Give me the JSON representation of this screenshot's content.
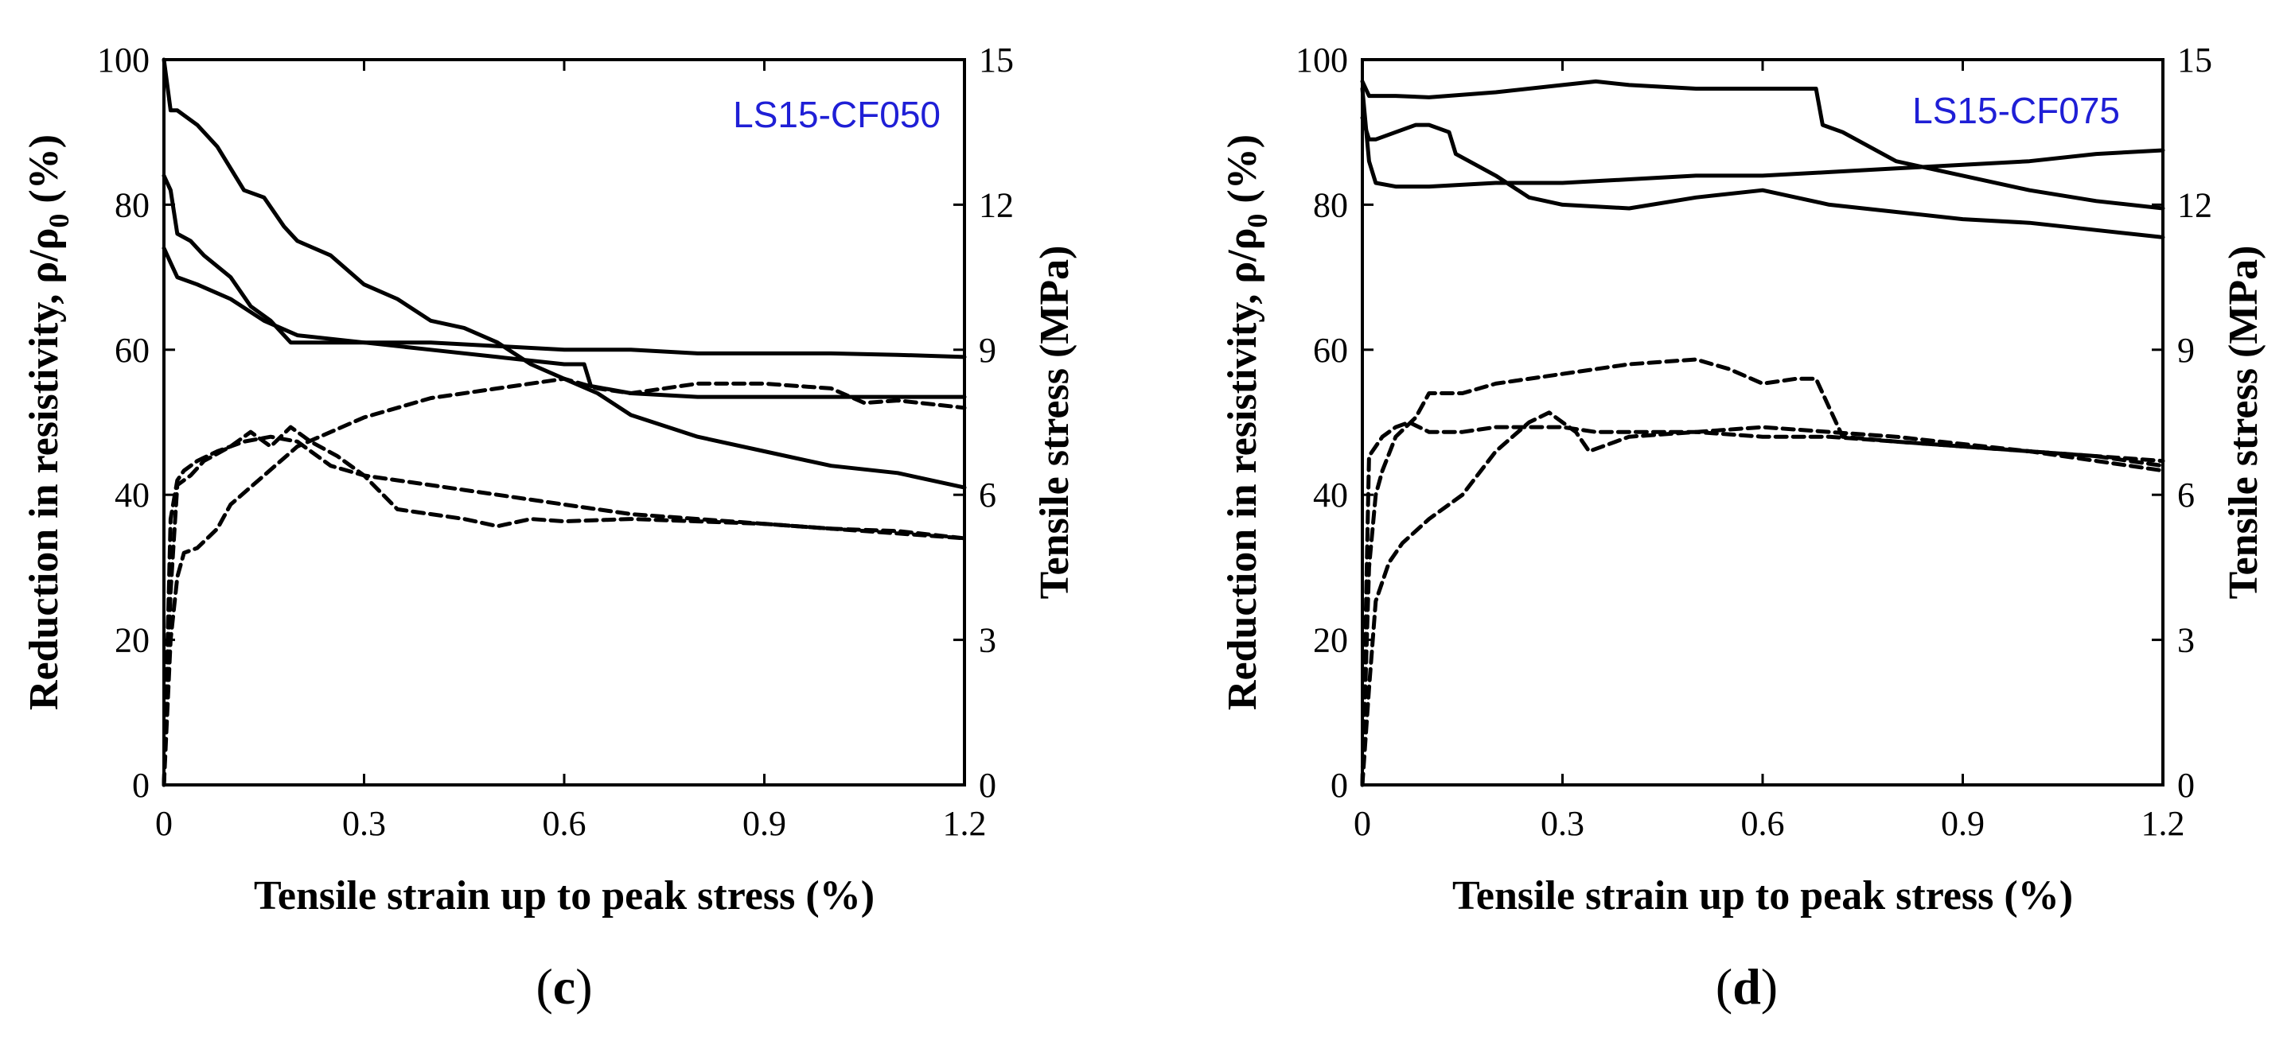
{
  "chart_data": [
    {
      "type": "line",
      "panel_label": "c",
      "specimen_label": "LS15-CF050",
      "colors": {
        "specimen_label": "#1f1fd6",
        "lines": "#000000"
      },
      "xlabel": "Tensile strain up to peak stress (%)",
      "ylabel_left": "Reduction in resistivity, ρ/ρ0 (%)",
      "ylabel_left_parts": {
        "base": "Reduction in resistivity, ρ/ρ",
        "subscript": "0",
        "suffix": " (%)"
      },
      "ylabel_right": "Tensile stress (MPa)",
      "xlim": [
        0,
        1.2
      ],
      "ylim_left": [
        0,
        100
      ],
      "ylim_right": [
        0,
        15
      ],
      "xticks": [
        "0",
        "0.3",
        "0.6",
        "0.9",
        "1.2"
      ],
      "yticks_left": [
        "0",
        "20",
        "40",
        "60",
        "80",
        "100"
      ],
      "yticks_right": [
        "0",
        "3",
        "6",
        "9",
        "12",
        "15"
      ],
      "series": [
        {
          "name": "resistivity-1",
          "axis": "left",
          "style": "solid",
          "x": [
            0,
            0.01,
            0.02,
            0.05,
            0.08,
            0.12,
            0.15,
            0.18,
            0.2,
            0.25,
            0.3,
            0.35,
            0.4,
            0.45,
            0.5,
            0.55,
            0.6,
            0.65,
            0.7,
            0.8,
            0.9,
            1.0,
            1.1,
            1.2
          ],
          "y": [
            100,
            93,
            93,
            91,
            88,
            82,
            81,
            77,
            75,
            73,
            69,
            67,
            64,
            63,
            61,
            58,
            56,
            54,
            51,
            48,
            46,
            44,
            43,
            41
          ]
        },
        {
          "name": "resistivity-2",
          "axis": "left",
          "style": "solid",
          "x": [
            0,
            0.01,
            0.02,
            0.04,
            0.06,
            0.1,
            0.13,
            0.16,
            0.18,
            0.19,
            0.2,
            0.3,
            0.4,
            0.5,
            0.6,
            0.7,
            0.8,
            0.9,
            1.0,
            1.1,
            1.2
          ],
          "y": [
            84,
            82,
            76,
            75,
            73,
            70,
            66,
            64,
            62,
            61,
            61,
            61,
            61,
            60.5,
            60,
            60,
            59.5,
            59.5,
            59.5,
            59.3,
            59
          ]
        },
        {
          "name": "resistivity-3",
          "axis": "left",
          "style": "solid",
          "x": [
            0,
            0.01,
            0.02,
            0.05,
            0.1,
            0.15,
            0.2,
            0.3,
            0.4,
            0.5,
            0.55,
            0.6,
            0.63,
            0.64,
            0.7,
            0.8,
            0.9,
            1.0,
            1.1,
            1.2
          ],
          "y": [
            74,
            72,
            70,
            69,
            67,
            64,
            62,
            61,
            60,
            59,
            58.5,
            58,
            58,
            55,
            54,
            53.5,
            53.5,
            53.5,
            53.5,
            53.5
          ]
        },
        {
          "name": "stress-1",
          "axis": "right",
          "style": "dashed",
          "x": [
            0,
            0.01,
            0.02,
            0.03,
            0.05,
            0.08,
            0.1,
            0.15,
            0.2,
            0.25,
            0.3,
            0.35,
            0.4,
            0.5,
            0.6,
            0.65,
            0.7,
            0.8,
            0.9,
            1.0,
            1.05,
            1.1,
            1.2
          ],
          "y": [
            0,
            3,
            4.3,
            4.8,
            4.9,
            5.3,
            5.8,
            6.4,
            7,
            7.3,
            7.6,
            7.8,
            8,
            8.2,
            8.4,
            8.2,
            8.1,
            8.3,
            8.3,
            8.2,
            7.9,
            7.95,
            7.8
          ]
        },
        {
          "name": "stress-2",
          "axis": "right",
          "style": "dashed",
          "x": [
            0,
            0.01,
            0.02,
            0.04,
            0.06,
            0.1,
            0.13,
            0.16,
            0.19,
            0.22,
            0.26,
            0.3,
            0.35,
            0.4,
            0.45,
            0.5,
            0.55,
            0.6,
            0.7,
            0.8,
            0.9,
            1.0,
            1.1,
            1.2
          ],
          "y": [
            0,
            4,
            6.2,
            6.4,
            6.7,
            7,
            7.3,
            7,
            7.4,
            7.1,
            6.8,
            6.4,
            5.7,
            5.6,
            5.5,
            5.35,
            5.5,
            5.45,
            5.5,
            5.45,
            5.4,
            5.3,
            5.25,
            5.1
          ]
        },
        {
          "name": "stress-3",
          "axis": "right",
          "style": "dashed",
          "x": [
            0,
            0.01,
            0.02,
            0.03,
            0.05,
            0.08,
            0.12,
            0.16,
            0.2,
            0.25,
            0.3,
            0.35,
            0.4,
            0.45,
            0.5,
            0.6,
            0.7,
            0.8,
            0.9,
            1.0,
            1.1,
            1.2
          ],
          "y": [
            0,
            5.5,
            6.3,
            6.5,
            6.7,
            6.9,
            7.1,
            7.2,
            7.1,
            6.6,
            6.4,
            6.3,
            6.2,
            6.1,
            6,
            5.8,
            5.6,
            5.5,
            5.4,
            5.3,
            5.2,
            5.1
          ]
        }
      ]
    },
    {
      "type": "line",
      "panel_label": "d",
      "specimen_label": "LS15-CF075",
      "colors": {
        "specimen_label": "#1f1fd6",
        "lines": "#000000"
      },
      "xlabel": "Tensile strain up to peak stress (%)",
      "ylabel_left": "Reduction in resistivity, ρ/ρ0 (%)",
      "ylabel_left_parts": {
        "base": "Reduction in resistivity, ρ/ρ",
        "subscript": "0",
        "suffix": " (%)"
      },
      "ylabel_right": "Tensile stress (MPa)",
      "xlim": [
        0,
        1.2
      ],
      "ylim_left": [
        0,
        100
      ],
      "ylim_right": [
        0,
        15
      ],
      "xticks": [
        "0",
        "0.3",
        "0.6",
        "0.9",
        "1.2"
      ],
      "yticks_left": [
        "0",
        "20",
        "40",
        "60",
        "80",
        "100"
      ],
      "yticks_right": [
        "0",
        "3",
        "6",
        "9",
        "12",
        "15"
      ],
      "series": [
        {
          "name": "resistivity-1",
          "axis": "left",
          "style": "solid",
          "x": [
            0,
            0.01,
            0.05,
            0.1,
            0.2,
            0.3,
            0.35,
            0.4,
            0.5,
            0.6,
            0.65,
            0.68,
            0.69,
            0.72,
            0.8,
            0.9,
            1.0,
            1.1,
            1.2
          ],
          "y": [
            97,
            95,
            95,
            94.8,
            95.5,
            96.5,
            97,
            96.5,
            96,
            96,
            96,
            96,
            91,
            90,
            86,
            84,
            82,
            80.5,
            79.5
          ]
        },
        {
          "name": "resistivity-2",
          "axis": "left",
          "style": "solid",
          "x": [
            0,
            0.01,
            0.02,
            0.05,
            0.08,
            0.1,
            0.13,
            0.14,
            0.2,
            0.25,
            0.3,
            0.4,
            0.5,
            0.6,
            0.7,
            0.8,
            0.9,
            1.0,
            1.1,
            1.2
          ],
          "y": [
            92,
            89,
            89,
            90,
            91,
            91,
            90,
            87,
            84,
            81,
            80,
            79.5,
            81,
            82,
            80,
            79,
            78,
            77.5,
            76.5,
            75.5
          ]
        },
        {
          "name": "resistivity-3",
          "axis": "left",
          "style": "solid",
          "x": [
            0,
            0.01,
            0.02,
            0.05,
            0.1,
            0.2,
            0.3,
            0.4,
            0.5,
            0.6,
            0.7,
            0.8,
            0.9,
            1.0,
            1.1,
            1.2
          ],
          "y": [
            96,
            86,
            83,
            82.5,
            82.5,
            83,
            83,
            83.5,
            84,
            84,
            84.5,
            85,
            85.5,
            86,
            87,
            87.5
          ]
        },
        {
          "name": "stress-1",
          "axis": "right",
          "style": "dashed",
          "x": [
            0,
            0.01,
            0.02,
            0.03,
            0.05,
            0.08,
            0.1,
            0.15,
            0.2,
            0.3,
            0.4,
            0.5,
            0.55,
            0.6,
            0.65,
            0.68,
            0.7,
            0.72,
            0.8,
            0.9,
            1.0,
            1.1,
            1.2
          ],
          "y": [
            0,
            4.5,
            6,
            6.5,
            7.2,
            7.6,
            8.1,
            8.1,
            8.3,
            8.5,
            8.7,
            8.8,
            8.6,
            8.3,
            8.4,
            8.4,
            7.8,
            7.2,
            7.1,
            7,
            6.9,
            6.8,
            6.6
          ]
        },
        {
          "name": "stress-2",
          "axis": "right",
          "style": "dashed",
          "x": [
            0,
            0.01,
            0.03,
            0.05,
            0.07,
            0.1,
            0.15,
            0.2,
            0.25,
            0.3,
            0.35,
            0.4,
            0.5,
            0.6,
            0.7,
            0.8,
            0.9,
            1.0,
            1.1,
            1.2
          ],
          "y": [
            0,
            6.8,
            7.2,
            7.4,
            7.5,
            7.3,
            7.3,
            7.4,
            7.4,
            7.4,
            7.3,
            7.3,
            7.3,
            7.2,
            7.2,
            7.1,
            7,
            6.9,
            6.8,
            6.7
          ]
        },
        {
          "name": "stress-3",
          "axis": "right",
          "style": "dashed",
          "x": [
            0,
            0.01,
            0.02,
            0.04,
            0.06,
            0.1,
            0.15,
            0.2,
            0.25,
            0.28,
            0.32,
            0.34,
            0.4,
            0.5,
            0.6,
            0.7,
            0.8,
            0.9,
            1.0,
            1.1,
            1.2
          ],
          "y": [
            0,
            2,
            3.8,
            4.6,
            5,
            5.5,
            6,
            6.9,
            7.5,
            7.7,
            7.3,
            6.9,
            7.2,
            7.3,
            7.4,
            7.3,
            7.2,
            7.05,
            6.9,
            6.7,
            6.5
          ]
        }
      ]
    }
  ]
}
